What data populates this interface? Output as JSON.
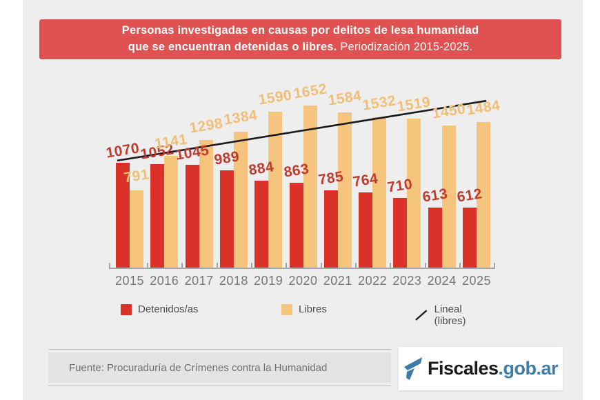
{
  "banner": {
    "title_line1": "Personas investigadas en causas por delitos de lesa humanidad",
    "title_line2_bold": "que se encuentran detenidas o libres.",
    "title_line2_regular": " Periodización 2015-2025."
  },
  "chart_data": {
    "type": "bar",
    "title": "Personas investigadas en causas por delitos de lesa humanidad que se encuentran detenidas o libres. Periodización 2015-2025.",
    "categories": [
      "2015",
      "2016",
      "2017",
      "2018",
      "2019",
      "2020",
      "2021",
      "2022",
      "2023",
      "2024",
      "2025"
    ],
    "series": [
      {
        "name": "Detenidos/as",
        "color": "#da3129",
        "label_color": "#be3b2f",
        "values": [
          1070,
          1052,
          1045,
          989,
          884,
          863,
          785,
          764,
          710,
          613,
          612
        ]
      },
      {
        "name": "Libres",
        "color": "#f5c47d",
        "label_color": "#f0be75",
        "values": [
          791,
          1141,
          1298,
          1384,
          1590,
          1652,
          1584,
          1532,
          1519,
          1450,
          1484
        ]
      }
    ],
    "trendline": {
      "name": "Lineal (libres)",
      "color": "#1a1a1a",
      "start_value": 1090,
      "end_value": 1700
    },
    "xlabel": "",
    "ylabel": "",
    "ylim": [
      0,
      1814
    ],
    "grid": false,
    "legend_position": "bottom",
    "data_labels": true
  },
  "legend": {
    "items": [
      {
        "label": "Detenidos/as",
        "swatch": "square",
        "color": "#da3129"
      },
      {
        "label": "Libres",
        "swatch": "square",
        "color": "#f5c47d"
      },
      {
        "label": "Lineal (libres)",
        "swatch": "line",
        "color": "#1a1a1a"
      }
    ]
  },
  "footer": {
    "source_text": "Fuente: Procuraduría de Crímenes contra la Humanidad"
  },
  "logo": {
    "text_black": "Fiscales",
    "text_blue": ".gob.ar",
    "blue": "#3d7ea6",
    "icon": "fiscales-flag-icon"
  }
}
